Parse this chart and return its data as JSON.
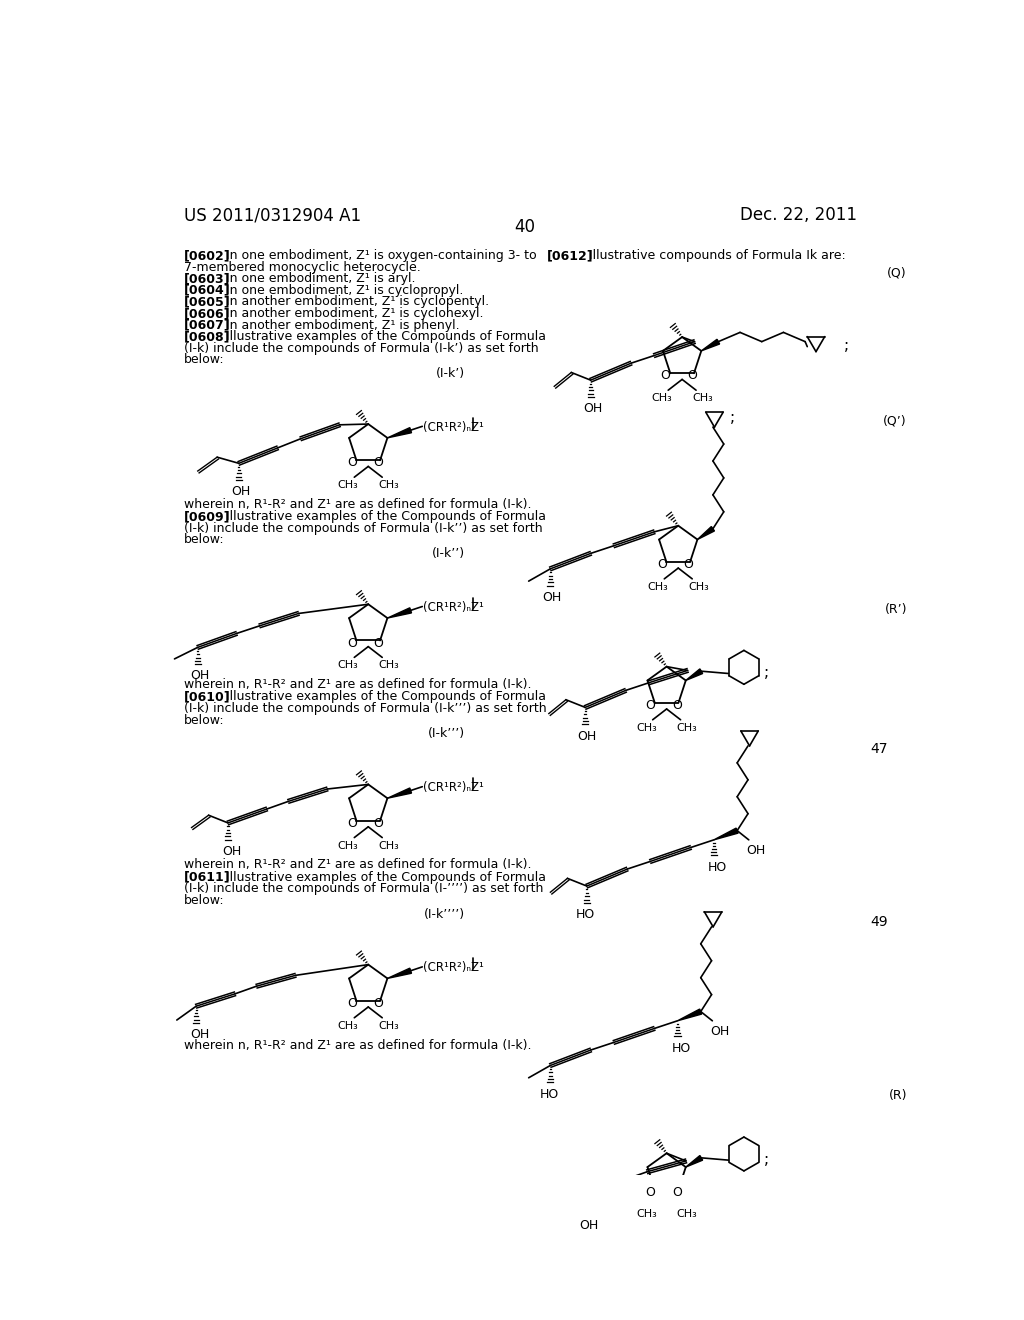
{
  "page_header_left": "US 2011/0312904 A1",
  "page_header_right": "Dec. 22, 2011",
  "page_number": "40",
  "background_color": "#ffffff"
}
